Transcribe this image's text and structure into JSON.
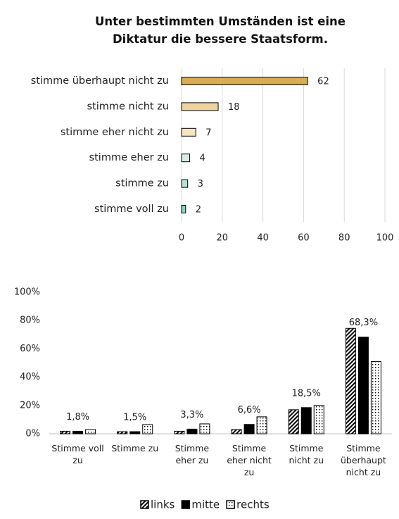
{
  "chart_data": [
    {
      "type": "hbar",
      "title": "Unter bestimmten Umständen ist eine Diktatur die bessere Staatsform.",
      "categories": [
        "stimme überhaupt nicht zu",
        "stimme nicht zu",
        "stimme eher nicht zu",
        "stimme eher zu",
        "stimme zu",
        "stimme voll zu"
      ],
      "values": [
        62,
        18,
        7,
        4,
        3,
        2
      ],
      "colors": [
        "#d9ad55",
        "#f0d49e",
        "#f7e4c0",
        "#d6ede6",
        "#b9e0d3",
        "#8fcfbd"
      ],
      "xlim": [
        0,
        100
      ],
      "xticks": [
        0,
        20,
        40,
        60,
        80,
        100
      ],
      "grid": true
    },
    {
      "type": "grouped_bar",
      "categories": [
        "Stimme voll zu",
        "Stimme zu",
        "Stimme eher zu",
        "Stimme eher nicht zu",
        "Stimme nicht zu",
        "Stimme überhaupt nicht zu"
      ],
      "series": [
        {
          "name": "links",
          "color": "#000000",
          "pattern": "hatch",
          "values": [
            1.8,
            1.5,
            1.8,
            3,
            17,
            74.5
          ]
        },
        {
          "name": "mitte",
          "color": "#000000",
          "pattern": "solid",
          "values": [
            1.8,
            1.5,
            3.3,
            6.6,
            18.5,
            68.3
          ],
          "value_labels": [
            "1,8%",
            "1,5%",
            "3,3%",
            "6,6%",
            "18,5%",
            "68,3%"
          ]
        },
        {
          "name": "rechts",
          "color": "#000000",
          "pattern": "dots",
          "values": [
            3,
            6.5,
            7,
            12,
            20,
            51
          ]
        }
      ],
      "ylim": [
        0,
        100
      ],
      "yticks": [
        {
          "value": 0,
          "label": "0%"
        },
        {
          "value": 20,
          "label": "20%"
        },
        {
          "value": 40,
          "label": "40%"
        },
        {
          "value": 60,
          "label": "60%"
        },
        {
          "value": 80,
          "label": "80%"
        },
        {
          "value": 100,
          "label": "100%"
        }
      ],
      "grid": false,
      "legend": "bottom"
    }
  ]
}
